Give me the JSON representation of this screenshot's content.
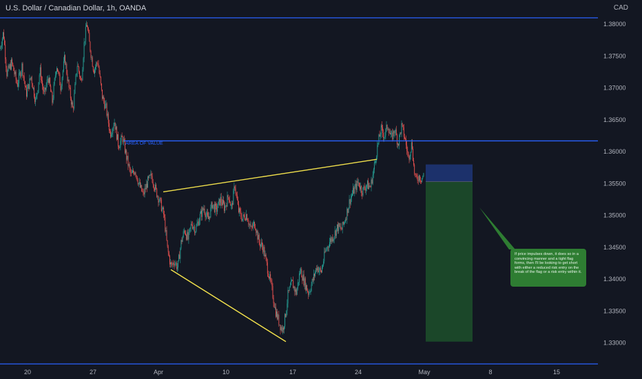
{
  "header": {
    "title": "U.S. Dollar / Canadian Dollar, 1h, OANDA",
    "currency": "CAD"
  },
  "annotations": {
    "area_of_value_label": "AREA OF VALUE",
    "note": "If price impulses down, it does so in a convincing manner and a tight flag forms, then I'll be looking to get short with either a reduced risk entry on the break of the flag or a risk entry within it."
  },
  "colors": {
    "background": "#131722",
    "up_candle": "#26a69a",
    "down_candle": "#ef5350",
    "level_line": "#2962ff",
    "trendline": "#f2e14c",
    "stop_zone": "#1c3370",
    "target_zone": "#1b4a2a",
    "note_box": "#2e7d32",
    "axis_text": "#b2b5be"
  },
  "chart_data": {
    "type": "candlestick",
    "symbol": "U.S. Dollar / Canadian Dollar",
    "timeframe": "1h",
    "source": "OANDA",
    "x_ticks": [
      "20",
      "27",
      "Apr",
      "10",
      "17",
      "24",
      "May",
      "8",
      "15"
    ],
    "y_ticks": [
      "1.38000",
      "1.37500",
      "1.37000",
      "1.36500",
      "1.36000",
      "1.35500",
      "1.35000",
      "1.34500",
      "1.34000",
      "1.33500",
      "1.33000"
    ],
    "ylim": [
      1.3265,
      1.3838
    ],
    "price_path": [
      [
        0,
        1.3762
      ],
      [
        5,
        1.3788
      ],
      [
        10,
        1.3722
      ],
      [
        17,
        1.374
      ],
      [
        25,
        1.3705
      ],
      [
        32,
        1.3735
      ],
      [
        38,
        1.369
      ],
      [
        45,
        1.3718
      ],
      [
        52,
        1.3678
      ],
      [
        58,
        1.3728
      ],
      [
        64,
        1.3688
      ],
      [
        70,
        1.3718
      ],
      [
        76,
        1.3678
      ],
      [
        82,
        1.3738
      ],
      [
        88,
        1.3702
      ],
      [
        94,
        1.3748
      ],
      [
        100,
        1.37
      ],
      [
        106,
        1.3665
      ],
      [
        112,
        1.3738
      ],
      [
        118,
        1.3708
      ],
      [
        122,
        1.3768
      ],
      [
        126,
        1.3803
      ],
      [
        130,
        1.3768
      ],
      [
        136,
        1.3728
      ],
      [
        142,
        1.3742
      ],
      [
        148,
        1.3688
      ],
      [
        154,
        1.3668
      ],
      [
        160,
        1.3628
      ],
      [
        166,
        1.3648
      ],
      [
        172,
        1.361
      ],
      [
        178,
        1.3622
      ],
      [
        184,
        1.359
      ],
      [
        190,
        1.3562
      ],
      [
        196,
        1.3572
      ],
      [
        202,
        1.3548
      ],
      [
        208,
        1.3532
      ],
      [
        214,
        1.3552
      ],
      [
        220,
        1.3562
      ],
      [
        226,
        1.354
      ],
      [
        232,
        1.3522
      ],
      [
        238,
        1.35
      ],
      [
        243,
        1.3448
      ],
      [
        248,
        1.342
      ],
      [
        253,
        1.3428
      ],
      [
        258,
        1.3418
      ],
      [
        263,
        1.3458
      ],
      [
        268,
        1.3478
      ],
      [
        273,
        1.3462
      ],
      [
        278,
        1.3488
      ],
      [
        284,
        1.3478
      ],
      [
        290,
        1.3498
      ],
      [
        296,
        1.3512
      ],
      [
        302,
        1.3492
      ],
      [
        308,
        1.3518
      ],
      [
        314,
        1.3508
      ],
      [
        320,
        1.3525
      ],
      [
        326,
        1.3512
      ],
      [
        332,
        1.3532
      ],
      [
        336,
        1.351
      ],
      [
        341,
        1.3548
      ],
      [
        346,
        1.3508
      ],
      [
        352,
        1.3495
      ],
      [
        358,
        1.3502
      ],
      [
        364,
        1.3478
      ],
      [
        370,
        1.3488
      ],
      [
        376,
        1.3458
      ],
      [
        382,
        1.345
      ],
      [
        388,
        1.3418
      ],
      [
        394,
        1.3388
      ],
      [
        400,
        1.335
      ],
      [
        406,
        1.333
      ],
      [
        410,
        1.332
      ],
      [
        414,
        1.334
      ],
      [
        418,
        1.3375
      ],
      [
        424,
        1.3395
      ],
      [
        430,
        1.3378
      ],
      [
        436,
        1.3415
      ],
      [
        442,
        1.3395
      ],
      [
        448,
        1.3378
      ],
      [
        454,
        1.3398
      ],
      [
        460,
        1.342
      ],
      [
        466,
        1.341
      ],
      [
        472,
        1.3442
      ],
      [
        478,
        1.3458
      ],
      [
        484,
        1.3468
      ],
      [
        490,
        1.3482
      ],
      [
        496,
        1.3478
      ],
      [
        502,
        1.3498
      ],
      [
        508,
        1.3525
      ],
      [
        514,
        1.354
      ],
      [
        520,
        1.3552
      ],
      [
        526,
        1.3538
      ],
      [
        532,
        1.3548
      ],
      [
        538,
        1.3545
      ],
      [
        543,
        1.3575
      ],
      [
        548,
        1.3608
      ],
      [
        553,
        1.3635
      ],
      [
        558,
        1.3625
      ],
      [
        563,
        1.3642
      ],
      [
        568,
        1.362
      ],
      [
        573,
        1.3635
      ],
      [
        578,
        1.3612
      ],
      [
        583,
        1.364
      ],
      [
        588,
        1.362
      ],
      [
        593,
        1.359
      ],
      [
        598,
        1.3615
      ],
      [
        601,
        1.3572
      ],
      [
        604,
        1.3555
      ],
      [
        608,
        1.3562
      ],
      [
        612,
        1.3558
      ],
      [
        616,
        1.3565
      ]
    ],
    "levels": [
      {
        "price": 1.381
      },
      {
        "price": 1.3617,
        "label": "AREA OF VALUE"
      },
      {
        "price": 1.3267
      }
    ],
    "trendlines": [
      {
        "from": [
          237,
          1.3537
        ],
        "to": [
          547,
          1.3588
        ]
      },
      {
        "from": [
          248,
          1.3415
        ],
        "to": [
          415,
          1.3302
        ]
      }
    ],
    "position_tool": {
      "x_start": 618,
      "x_end": 686,
      "stop": 1.358,
      "entry": 1.3553,
      "target": 1.3302
    }
  }
}
